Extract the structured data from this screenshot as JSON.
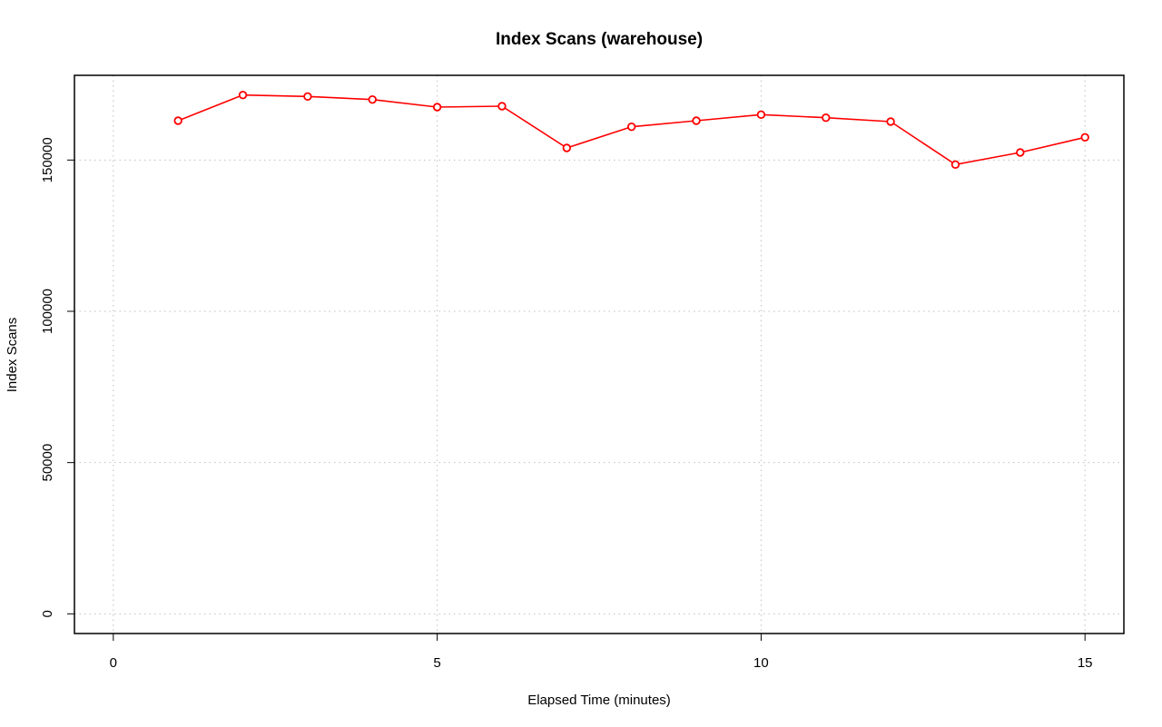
{
  "chart_data": {
    "type": "line",
    "title": "Index Scans (warehouse)",
    "xlabel": "Elapsed Time (minutes)",
    "ylabel": "Index Scans",
    "xlim": [
      -0.6,
      15.6
    ],
    "ylim": [
      -6500,
      178000
    ],
    "xticks": [
      0,
      5,
      10,
      15
    ],
    "yticks": [
      0,
      50000,
      100000,
      150000
    ],
    "grid": true,
    "legend": "none",
    "series": [
      {
        "color": "#ff0000",
        "x": [
          1,
          2,
          3,
          4,
          5,
          6,
          7,
          8,
          9,
          10,
          11,
          12,
          13,
          14,
          15
        ],
        "values": [
          163000,
          171500,
          171000,
          170000,
          167500,
          167800,
          154000,
          161000,
          163000,
          165000,
          164000,
          162700,
          148500,
          152500,
          157500
        ]
      }
    ]
  }
}
